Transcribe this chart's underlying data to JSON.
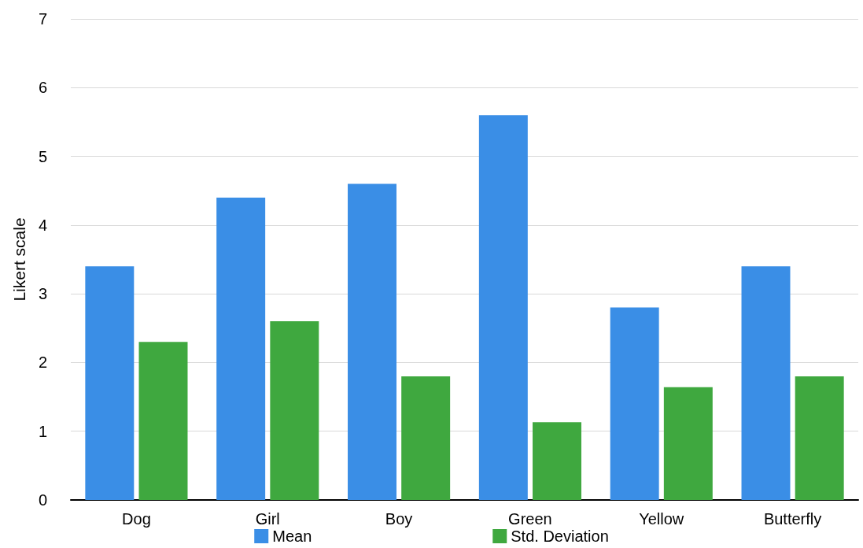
{
  "chart_data": {
    "type": "bar",
    "ylabel": "Likert scale",
    "categories": [
      "Dog",
      "Girl",
      "Boy",
      "Green",
      "Yellow",
      "Butterfly"
    ],
    "series": [
      {
        "name": "Mean",
        "color": "#3a8ee6",
        "values": [
          3.4,
          4.4,
          4.6,
          5.6,
          2.8,
          3.4
        ]
      },
      {
        "name": "Std. Deviation",
        "color": "#3fa83f",
        "values": [
          2.3,
          2.6,
          1.8,
          1.13,
          1.64,
          1.8
        ]
      }
    ],
    "ylim": [
      0,
      7
    ],
    "yticks": [
      0,
      1,
      2,
      3,
      4,
      5,
      6,
      7
    ],
    "grid": "y",
    "legend": "bottom"
  }
}
